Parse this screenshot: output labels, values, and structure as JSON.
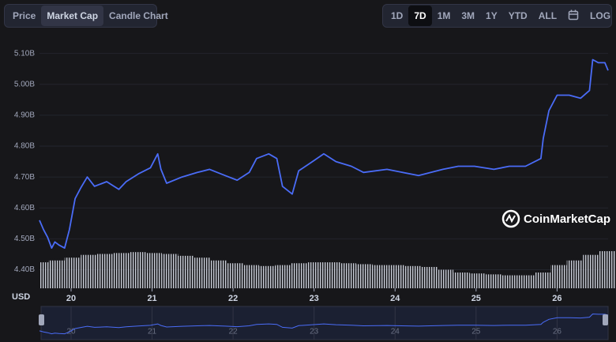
{
  "tabs": [
    "Price",
    "Market Cap",
    "Candle Chart"
  ],
  "active_tab_index": 1,
  "ranges": [
    "1D",
    "7D",
    "1M",
    "3M",
    "1Y",
    "YTD",
    "ALL"
  ],
  "active_range_index": 1,
  "log_button": "LOG",
  "currency": "USD",
  "watermark": "CoinMarketCap",
  "chart_data": {
    "type": "line",
    "color": "#4a6cf7",
    "x": [
      19.61,
      19.66,
      19.71,
      19.76,
      19.8,
      19.85,
      19.92,
      19.98,
      20.05,
      20.12,
      20.2,
      20.29,
      20.44,
      20.59,
      20.68,
      20.83,
      20.98,
      21.07,
      21.11,
      21.18,
      21.37,
      21.56,
      21.71,
      21.9,
      22.05,
      22.2,
      22.29,
      22.44,
      22.54,
      22.61,
      22.73,
      22.81,
      22.98,
      23.12,
      23.27,
      23.46,
      23.61,
      23.9,
      24.29,
      24.59,
      24.78,
      24.98,
      25.22,
      25.41,
      25.61,
      25.8,
      25.83,
      25.9,
      26.0,
      26.15,
      26.29,
      26.4,
      26.44,
      26.51,
      26.59,
      26.63
    ],
    "values": [
      4.56,
      4.53,
      4.505,
      4.47,
      4.49,
      4.48,
      4.47,
      4.53,
      4.63,
      4.665,
      4.7,
      4.67,
      4.685,
      4.66,
      4.685,
      4.71,
      4.73,
      4.775,
      4.725,
      4.68,
      4.7,
      4.715,
      4.725,
      4.705,
      4.69,
      4.715,
      4.76,
      4.775,
      4.76,
      4.67,
      4.645,
      4.72,
      4.75,
      4.775,
      4.75,
      4.735,
      4.715,
      4.725,
      4.705,
      4.725,
      4.735,
      4.735,
      4.725,
      4.735,
      4.735,
      4.76,
      4.825,
      4.915,
      4.965,
      4.965,
      4.955,
      4.98,
      5.08,
      5.07,
      5.07,
      5.045
    ],
    "volume": {
      "color": "#c8ccd6",
      "x": [
        19.62,
        19.82,
        20.02,
        20.22,
        20.42,
        20.62,
        20.82,
        21.02,
        21.22,
        21.42,
        21.62,
        21.82,
        22.02,
        22.22,
        22.42,
        22.62,
        22.82,
        23.02,
        23.22,
        23.42,
        23.62,
        23.82,
        24.02,
        24.22,
        24.42,
        24.62,
        24.82,
        25.02,
        25.22,
        25.42,
        25.62,
        25.82,
        26.02,
        26.22,
        26.42,
        26.62
      ],
      "values": [
        28,
        30,
        33,
        36,
        37,
        38,
        39,
        38,
        37,
        35,
        33,
        30,
        27,
        25,
        24,
        25,
        27,
        28,
        28,
        27,
        26,
        25,
        25,
        24,
        23,
        20,
        17,
        16,
        15,
        14,
        14,
        17,
        25,
        30,
        36,
        40
      ]
    },
    "xlim": [
      19.61,
      26.63
    ],
    "xticks": [
      20,
      21,
      22,
      23,
      24,
      25,
      26
    ],
    "ylim": [
      4.34,
      5.14
    ],
    "yticks": [
      {
        "value": 4.4,
        "label": "4.40B"
      },
      {
        "value": 4.5,
        "label": "4.50B"
      },
      {
        "value": 4.6,
        "label": "4.60B"
      },
      {
        "value": 4.7,
        "label": "4.70B"
      },
      {
        "value": 4.8,
        "label": "4.80B"
      },
      {
        "value": 4.9,
        "label": "4.90B"
      },
      {
        "value": 5.0,
        "label": "5.00B"
      },
      {
        "value": 5.1,
        "label": "5.10B"
      }
    ],
    "grid": true
  }
}
